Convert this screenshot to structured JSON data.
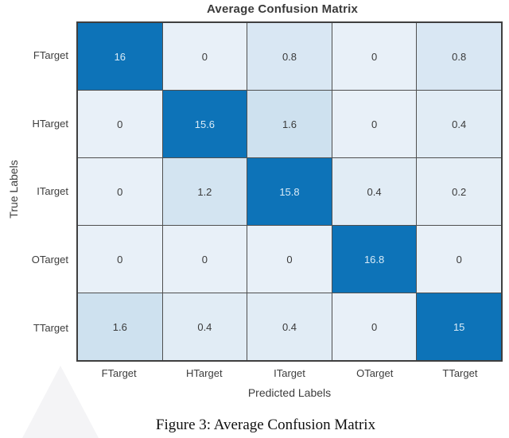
{
  "figure": {
    "title": "Average Confusion Matrix",
    "xlabel": "Predicted Labels",
    "ylabel": "True Labels",
    "caption": "Figure 3: Average Confusion Matrix"
  },
  "chart_data": {
    "type": "heatmap",
    "title": "Average Confusion Matrix",
    "xlabel": "Predicted Labels",
    "ylabel": "True Labels",
    "x_categories": [
      "FTarget",
      "HTarget",
      "ITarget",
      "OTarget",
      "TTarget"
    ],
    "y_categories": [
      "FTarget",
      "HTarget",
      "ITarget",
      "OTarget",
      "TTarget"
    ],
    "matrix": [
      [
        16,
        0,
        0.8,
        0,
        0.8
      ],
      [
        0,
        15.6,
        1.6,
        0,
        0.4
      ],
      [
        0,
        1.2,
        15.8,
        0.4,
        0.2
      ],
      [
        0,
        0,
        0,
        16.8,
        0
      ],
      [
        1.6,
        0.4,
        0.4,
        0,
        15
      ]
    ],
    "value_range": [
      0,
      16.8
    ],
    "legend": "none",
    "grid": "cell-borders"
  },
  "colors": {
    "diagonal_fill": "#0d73b8",
    "diagonal_text": "#d9ebf7",
    "off_text": "#3a3a3a",
    "grid_line": "#4f4f4f",
    "outer_border": "#3f3f3f",
    "background": "#ffffff",
    "watermark": "#f4f4f6",
    "off_fill_by_value": {
      "0": "#e8f0f8",
      "0.2": "#e5eef6",
      "0.4": "#e1ecf5",
      "0.8": "#d9e7f3",
      "1.2": "#d3e4f1",
      "1.6": "#cee1ef"
    }
  }
}
